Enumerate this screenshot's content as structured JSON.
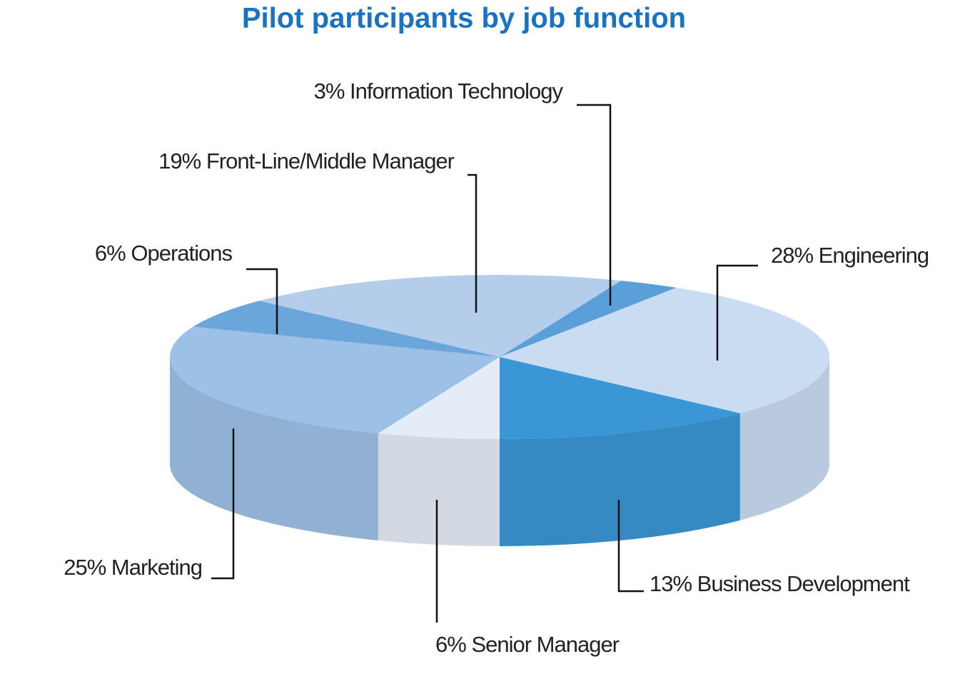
{
  "chart_data": {
    "type": "pie3d",
    "title": "Pilot participants by job function",
    "categories": [
      "Senior Manager",
      "Marketing",
      "Operations",
      "Front-Line/Middle Manager",
      "Information Technology",
      "Engineering",
      "Business Development"
    ],
    "values": [
      6,
      25,
      6,
      19,
      3,
      28,
      13
    ],
    "value_labels": [
      "6%",
      "25%",
      "6%",
      "19%",
      "3%",
      "28%",
      "13%"
    ],
    "colors": [
      "#e4ecf7",
      "#9dc0e6",
      "#6aa6da",
      "#b4cdea",
      "#5a9fd8",
      "#c9dcf1",
      "#3a96d4"
    ]
  }
}
